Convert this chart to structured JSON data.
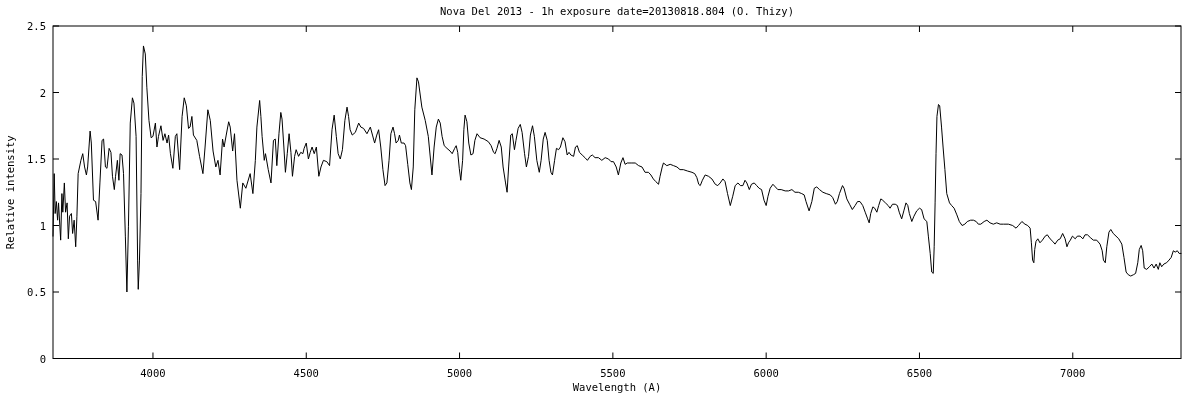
{
  "chart_data": {
    "type": "line",
    "title": "Nova Del 2013 - 1h exposure date=20130818.804 (O. Thizy)",
    "xlabel": "Wavelength (A)",
    "ylabel": "Relative intensity",
    "xlim": [
      3674,
      7353
    ],
    "ylim": [
      0,
      2.5
    ],
    "xticks": [
      4000,
      4500,
      5000,
      5500,
      6000,
      6500,
      7000
    ],
    "yticks": [
      0,
      0.5,
      1,
      1.5,
      2,
      2.5
    ],
    "x": [
      3674,
      3678,
      3681,
      3685,
      3689,
      3692,
      3699,
      3703,
      3706,
      3711,
      3715,
      3720,
      3724,
      3728,
      3734,
      3738,
      3743,
      3748,
      3752,
      3756,
      3765,
      3771,
      3777,
      3783,
      3787,
      3795,
      3799,
      3806,
      3813,
      3821,
      3827,
      3834,
      3839,
      3845,
      3850,
      3857,
      3863,
      3868,
      3874,
      3878,
      3884,
      3889,
      3893,
      3899,
      3904,
      3910,
      3915,
      3920,
      3926,
      3933,
      3938,
      3945,
      3950,
      3952,
      3956,
      3961,
      3965,
      3969,
      3975,
      3980,
      3987,
      3994,
      4000,
      4008,
      4013,
      4018,
      4026,
      4033,
      4039,
      4046,
      4051,
      4057,
      4065,
      4073,
      4078,
      4087,
      4095,
      4102,
      4109,
      4116,
      4121,
      4127,
      4132,
      4143,
      4152,
      4163,
      4170,
      4179,
      4187,
      4196,
      4205,
      4212,
      4219,
      4227,
      4232,
      4239,
      4247,
      4252,
      4260,
      4266,
      4274,
      4285,
      4293,
      4303,
      4317,
      4326,
      4334,
      4339,
      4348,
      4352,
      4356,
      4363,
      4367,
      4376,
      4385,
      4393,
      4399,
      4404,
      4411,
      4417,
      4421,
      4427,
      4432,
      4438,
      4444,
      4450,
      4455,
      4462,
      4467,
      4475,
      4482,
      4489,
      4493,
      4500,
      4507,
      4513,
      4519,
      4526,
      4533,
      4541,
      4548,
      4556,
      4567,
      4576,
      4584,
      4591,
      4598,
      4604,
      4611,
      4618,
      4626,
      4633,
      4638,
      4643,
      4650,
      4660,
      4671,
      4678,
      4687,
      4698,
      4709,
      4716,
      4723,
      4730,
      4736,
      4743,
      4750,
      4757,
      4763,
      4770,
      4776,
      4783,
      4788,
      4793,
      4800,
      4804,
      4810,
      4819,
      4824,
      4831,
      4838,
      4843,
      4849,
      4854,
      4861,
      4866,
      4877,
      4888,
      4898,
      4910,
      4917,
      4924,
      4931,
      4937,
      4943,
      4950,
      4959,
      4969,
      4976,
      4984,
      4989,
      4994,
      4999,
      5004,
      5010,
      5014,
      5018,
      5024,
      5030,
      5037,
      5044,
      5050,
      5057,
      5067,
      5080,
      5094,
      5103,
      5111,
      5116,
      5122,
      5129,
      5136,
      5142,
      5150,
      5155,
      5160,
      5167,
      5172,
      5179,
      5184,
      5191,
      5198,
      5204,
      5212,
      5218,
      5225,
      5231,
      5238,
      5244,
      5252,
      5260,
      5266,
      5273,
      5279,
      5286,
      5292,
      5298,
      5303,
      5310,
      5316,
      5323,
      5329,
      5337,
      5344,
      5351,
      5357,
      5363,
      5372,
      5378,
      5384,
      5391,
      5400,
      5409,
      5417,
      5426,
      5433,
      5442,
      5453,
      5464,
      5475,
      5486,
      5494,
      5502,
      5511,
      5518,
      5526,
      5533,
      5540,
      5547,
      5562,
      5573,
      5584,
      5595,
      5605,
      5616,
      5624,
      5632,
      5640,
      5649,
      5654,
      5661,
      5665,
      5676,
      5687,
      5698,
      5709,
      5719,
      5730,
      5743,
      5758,
      5767,
      5774,
      5780,
      5785,
      5792,
      5801,
      5812,
      5823,
      5834,
      5842,
      5850,
      5859,
      5866,
      5874,
      5883,
      5891,
      5899,
      5908,
      5916,
      5924,
      5931,
      5937,
      5945,
      5952,
      5961,
      5969,
      5977,
      5985,
      5993,
      6000,
      6006,
      6013,
      6022,
      6030,
      6038,
      6049,
      6062,
      6073,
      6084,
      6094,
      6105,
      6116,
      6124,
      6130,
      6140,
      6149,
      6157,
      6165,
      6174,
      6185,
      6196,
      6209,
      6217,
      6226,
      6232,
      6239,
      6249,
      6254,
      6263,
      6272,
      6281,
      6290,
      6298,
      6306,
      6315,
      6323,
      6331,
      6336,
      6341,
      6348,
      6354,
      6361,
      6367,
      6374,
      6380,
      6389,
      6398,
      6404,
      6412,
      6421,
      6428,
      6434,
      6442,
      6449,
      6456,
      6462,
      6467,
      6475,
      6482,
      6491,
      6500,
      6507,
      6515,
      6524,
      6529,
      6535,
      6540,
      6545,
      6548,
      6551,
      6554,
      6557,
      6562,
      6566,
      6572,
      6577,
      6583,
      6589,
      6598,
      6605,
      6613,
      6622,
      6630,
      6639,
      6648,
      6656,
      6667,
      6676,
      6685,
      6692,
      6700,
      6711,
      6720,
      6730,
      6741,
      6752,
      6763,
      6774,
      6790,
      6804,
      6815,
      6823,
      6834,
      6844,
      6853,
      6861,
      6865,
      6869,
      6873,
      6876,
      6880,
      6886,
      6893,
      6901,
      6910,
      6917,
      6926,
      6935,
      6942,
      6951,
      6959,
      6967,
      6975,
      6981,
      6986,
      6992,
      6999,
      7008,
      7015,
      7024,
      7033,
      7040,
      7048,
      7057,
      7067,
      7078,
      7089,
      7096,
      7100,
      7106,
      7111,
      7118,
      7124,
      7132,
      7141,
      7150,
      7160,
      7167,
      7174,
      7181,
      7189,
      7198,
      7205,
      7212,
      7217,
      7223,
      7228,
      7233,
      7241,
      7250,
      7258,
      7265,
      7272,
      7279,
      7284,
      7290,
      7297,
      7306,
      7314,
      7321,
      7328,
      7334,
      7341,
      7347,
      7353
    ],
    "series": [
      {
        "color": "#000000",
        "values": [
          0.92,
          1.39,
          1.09,
          1.18,
          1.04,
          1.17,
          0.89,
          1.24,
          1.1,
          1.32,
          1.1,
          1.17,
          0.9,
          1.07,
          1.09,
          0.94,
          1.04,
          0.84,
          1.07,
          1.39,
          1.49,
          1.54,
          1.44,
          1.38,
          1.44,
          1.71,
          1.62,
          1.19,
          1.18,
          1.04,
          1.32,
          1.64,
          1.65,
          1.44,
          1.43,
          1.58,
          1.55,
          1.37,
          1.27,
          1.37,
          1.49,
          1.34,
          1.54,
          1.53,
          1.39,
          0.92,
          0.5,
          0.99,
          1.77,
          1.96,
          1.92,
          1.67,
          0.74,
          0.52,
          0.74,
          1.24,
          2.12,
          2.35,
          2.29,
          2.04,
          1.79,
          1.66,
          1.67,
          1.77,
          1.59,
          1.67,
          1.75,
          1.64,
          1.69,
          1.62,
          1.68,
          1.54,
          1.43,
          1.67,
          1.69,
          1.42,
          1.82,
          1.96,
          1.9,
          1.73,
          1.74,
          1.82,
          1.68,
          1.64,
          1.52,
          1.39,
          1.59,
          1.87,
          1.79,
          1.56,
          1.44,
          1.49,
          1.38,
          1.65,
          1.59,
          1.68,
          1.78,
          1.74,
          1.56,
          1.69,
          1.34,
          1.13,
          1.32,
          1.28,
          1.39,
          1.24,
          1.49,
          1.74,
          1.94,
          1.82,
          1.67,
          1.49,
          1.54,
          1.42,
          1.32,
          1.64,
          1.65,
          1.45,
          1.69,
          1.85,
          1.8,
          1.59,
          1.4,
          1.54,
          1.69,
          1.55,
          1.37,
          1.52,
          1.57,
          1.52,
          1.55,
          1.54,
          1.58,
          1.62,
          1.5,
          1.55,
          1.59,
          1.54,
          1.59,
          1.37,
          1.44,
          1.49,
          1.48,
          1.45,
          1.72,
          1.83,
          1.67,
          1.54,
          1.5,
          1.57,
          1.79,
          1.89,
          1.82,
          1.72,
          1.68,
          1.7,
          1.77,
          1.74,
          1.73,
          1.69,
          1.74,
          1.68,
          1.62,
          1.68,
          1.72,
          1.59,
          1.42,
          1.3,
          1.32,
          1.49,
          1.69,
          1.74,
          1.69,
          1.62,
          1.64,
          1.68,
          1.62,
          1.62,
          1.6,
          1.46,
          1.32,
          1.27,
          1.44,
          1.87,
          2.11,
          2.08,
          1.89,
          1.79,
          1.67,
          1.38,
          1.59,
          1.74,
          1.8,
          1.77,
          1.67,
          1.6,
          1.58,
          1.56,
          1.54,
          1.58,
          1.6,
          1.55,
          1.43,
          1.34,
          1.49,
          1.72,
          1.83,
          1.78,
          1.62,
          1.53,
          1.54,
          1.64,
          1.69,
          1.66,
          1.65,
          1.63,
          1.6,
          1.55,
          1.54,
          1.58,
          1.64,
          1.59,
          1.44,
          1.32,
          1.25,
          1.44,
          1.68,
          1.69,
          1.57,
          1.64,
          1.73,
          1.76,
          1.7,
          1.54,
          1.44,
          1.52,
          1.68,
          1.75,
          1.67,
          1.49,
          1.4,
          1.49,
          1.65,
          1.7,
          1.64,
          1.49,
          1.4,
          1.38,
          1.49,
          1.58,
          1.57,
          1.59,
          1.66,
          1.63,
          1.53,
          1.55,
          1.53,
          1.52,
          1.59,
          1.6,
          1.55,
          1.53,
          1.51,
          1.49,
          1.52,
          1.53,
          1.51,
          1.51,
          1.49,
          1.51,
          1.5,
          1.48,
          1.48,
          1.44,
          1.38,
          1.47,
          1.51,
          1.46,
          1.47,
          1.47,
          1.47,
          1.45,
          1.44,
          1.4,
          1.4,
          1.38,
          1.35,
          1.33,
          1.31,
          1.37,
          1.44,
          1.47,
          1.45,
          1.46,
          1.45,
          1.44,
          1.42,
          1.42,
          1.41,
          1.4,
          1.39,
          1.36,
          1.31,
          1.3,
          1.34,
          1.38,
          1.37,
          1.35,
          1.31,
          1.3,
          1.32,
          1.35,
          1.33,
          1.24,
          1.15,
          1.22,
          1.3,
          1.32,
          1.3,
          1.3,
          1.34,
          1.32,
          1.27,
          1.31,
          1.32,
          1.3,
          1.28,
          1.27,
          1.19,
          1.15,
          1.22,
          1.28,
          1.31,
          1.29,
          1.27,
          1.27,
          1.26,
          1.26,
          1.27,
          1.25,
          1.25,
          1.24,
          1.23,
          1.18,
          1.11,
          1.18,
          1.28,
          1.29,
          1.27,
          1.25,
          1.24,
          1.23,
          1.21,
          1.16,
          1.18,
          1.24,
          1.3,
          1.28,
          1.2,
          1.16,
          1.12,
          1.15,
          1.18,
          1.18,
          1.15,
          1.1,
          1.05,
          1.02,
          1.09,
          1.14,
          1.13,
          1.1,
          1.15,
          1.2,
          1.19,
          1.17,
          1.15,
          1.13,
          1.16,
          1.16,
          1.15,
          1.1,
          1.05,
          1.11,
          1.17,
          1.15,
          1.09,
          1.03,
          1.07,
          1.11,
          1.13,
          1.12,
          1.05,
          1.03,
          0.92,
          0.79,
          0.65,
          0.64,
          0.84,
          1.17,
          1.54,
          1.82,
          1.91,
          1.9,
          1.74,
          1.59,
          1.42,
          1.24,
          1.17,
          1.15,
          1.13,
          1.08,
          1.03,
          1,
          1.01,
          1.03,
          1.04,
          1.04,
          1.03,
          1.01,
          1.01,
          1.03,
          1.04,
          1.02,
          1.01,
          1.02,
          1.01,
          1.01,
          1.01,
          1,
          0.98,
          1,
          1.03,
          1.01,
          1,
          0.98,
          0.87,
          0.74,
          0.72,
          0.82,
          0.88,
          0.9,
          0.87,
          0.89,
          0.92,
          0.93,
          0.9,
          0.88,
          0.86,
          0.89,
          0.9,
          0.94,
          0.9,
          0.84,
          0.87,
          0.89,
          0.92,
          0.9,
          0.92,
          0.92,
          0.9,
          0.93,
          0.93,
          0.91,
          0.89,
          0.89,
          0.86,
          0.81,
          0.74,
          0.72,
          0.84,
          0.95,
          0.97,
          0.94,
          0.92,
          0.9,
          0.86,
          0.76,
          0.65,
          0.63,
          0.62,
          0.63,
          0.64,
          0.72,
          0.82,
          0.85,
          0.81,
          0.68,
          0.67,
          0.69,
          0.71,
          0.68,
          0.71,
          0.67,
          0.72,
          0.69,
          0.71,
          0.72,
          0.74,
          0.76,
          0.81,
          0.8,
          0.81,
          0.79,
          0.79
        ]
      }
    ]
  }
}
